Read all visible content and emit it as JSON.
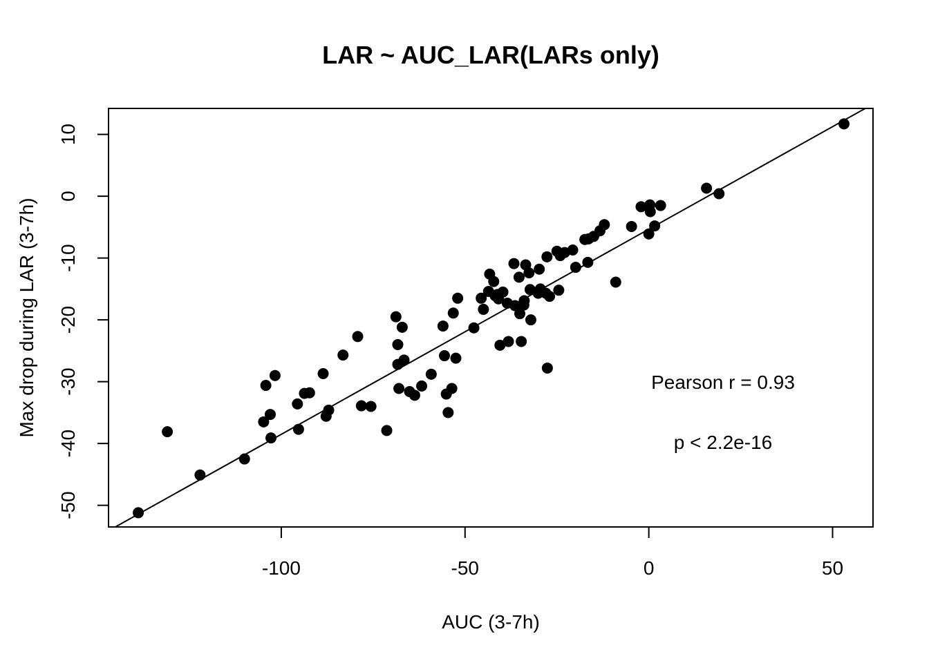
{
  "chart_data": {
    "type": "scatter",
    "title": "LAR ~ AUC_LAR(LARs only)",
    "xlabel": "AUC (3-7h)",
    "ylabel": "Max drop during LAR (3-7h)",
    "xlim": [
      -147,
      61
    ],
    "ylim": [
      -53.5,
      14.2
    ],
    "xticks": [
      -100,
      -50,
      0,
      50
    ],
    "yticks": [
      -50,
      -40,
      -30,
      -20,
      -10,
      0,
      10
    ],
    "xtick_labels": [
      "-100",
      "-50",
      "0",
      "50"
    ],
    "ytick_labels": [
      "-50",
      "-40",
      "-30",
      "-20",
      "-10",
      "0",
      "10"
    ],
    "grid": false,
    "regression_line": {
      "slope": 0.3318,
      "intercept": -5.34
    },
    "annotations": {
      "pearson": "Pearson r = 0.93",
      "pvalue": "p < 2.2e-16"
    },
    "points": [
      [
        -138.9,
        -51.2
      ],
      [
        -131.0,
        -38.1
      ],
      [
        -122.1,
        -45.1
      ],
      [
        -110.0,
        -42.5
      ],
      [
        -104.8,
        -36.5
      ],
      [
        -104.2,
        -30.6
      ],
      [
        -103.0,
        -35.3
      ],
      [
        -102.8,
        -39.1
      ],
      [
        -101.7,
        -29.0
      ],
      [
        -95.6,
        -33.6
      ],
      [
        -95.3,
        -37.7
      ],
      [
        -93.7,
        -31.9
      ],
      [
        -92.3,
        -31.8
      ],
      [
        -88.6,
        -28.7
      ],
      [
        -87.8,
        -35.6
      ],
      [
        -87.1,
        -34.6
      ],
      [
        -83.2,
        -25.7
      ],
      [
        -79.2,
        -22.7
      ],
      [
        -78.2,
        -33.9
      ],
      [
        -75.6,
        -34.0
      ],
      [
        -71.3,
        -37.9
      ],
      [
        -68.8,
        -19.5
      ],
      [
        -68.3,
        -24.0
      ],
      [
        -68.3,
        -27.2
      ],
      [
        -68.0,
        -31.1
      ],
      [
        -67.1,
        -21.2
      ],
      [
        -66.6,
        -26.5
      ],
      [
        -65.1,
        -31.6
      ],
      [
        -63.7,
        -32.2
      ],
      [
        -61.8,
        -30.7
      ],
      [
        -59.2,
        -28.8
      ],
      [
        -56.0,
        -21.0
      ],
      [
        -55.6,
        -25.8
      ],
      [
        -55.1,
        -32.0
      ],
      [
        -54.6,
        -35.0
      ],
      [
        -53.6,
        -31.1
      ],
      [
        -53.2,
        -18.9
      ],
      [
        -52.5,
        -26.2
      ],
      [
        -52.0,
        -16.5
      ],
      [
        -47.6,
        -21.3
      ],
      [
        -45.6,
        -16.5
      ],
      [
        -45.0,
        -18.3
      ],
      [
        -43.6,
        -15.4
      ],
      [
        -43.3,
        -12.6
      ],
      [
        -42.2,
        -13.8
      ],
      [
        -41.8,
        -16.1
      ],
      [
        -41.2,
        -15.9
      ],
      [
        -40.9,
        -16.6
      ],
      [
        -40.5,
        -24.1
      ],
      [
        -39.7,
        -15.5
      ],
      [
        -38.5,
        -17.3
      ],
      [
        -38.2,
        -23.5
      ],
      [
        -36.7,
        -10.9
      ],
      [
        -36.4,
        -17.7
      ],
      [
        -35.3,
        -13.1
      ],
      [
        -35.1,
        -19.0
      ],
      [
        -34.7,
        -23.5
      ],
      [
        -34.0,
        -17.6
      ],
      [
        -33.9,
        -16.9
      ],
      [
        -33.5,
        -11.1
      ],
      [
        -32.6,
        -12.4
      ],
      [
        -32.3,
        -15.1
      ],
      [
        -32.1,
        -20.0
      ],
      [
        -30.1,
        -15.7
      ],
      [
        -29.8,
        -11.8
      ],
      [
        -29.5,
        -15.0
      ],
      [
        -28.0,
        -15.7
      ],
      [
        -27.7,
        -9.8
      ],
      [
        -27.6,
        -27.8
      ],
      [
        -27.0,
        -16.2
      ],
      [
        -25.0,
        -8.9
      ],
      [
        -24.5,
        -15.2
      ],
      [
        -24.1,
        -9.6
      ],
      [
        -22.9,
        -9.1
      ],
      [
        -20.7,
        -8.7
      ],
      [
        -19.9,
        -11.5
      ],
      [
        -17.4,
        -7.0
      ],
      [
        -16.6,
        -10.7
      ],
      [
        -16.4,
        -6.9
      ],
      [
        -15.0,
        -6.5
      ],
      [
        -13.3,
        -5.6
      ],
      [
        -12.1,
        -4.6
      ],
      [
        -9.0,
        -13.9
      ],
      [
        -4.7,
        -4.9
      ],
      [
        -2.1,
        -1.7
      ],
      [
        0.0,
        -6.1
      ],
      [
        0.3,
        -1.4
      ],
      [
        0.4,
        -2.5
      ],
      [
        1.6,
        -4.8
      ],
      [
        3.2,
        -1.5
      ],
      [
        15.7,
        1.3
      ],
      [
        19.1,
        0.4
      ],
      [
        53.1,
        11.7
      ]
    ]
  }
}
